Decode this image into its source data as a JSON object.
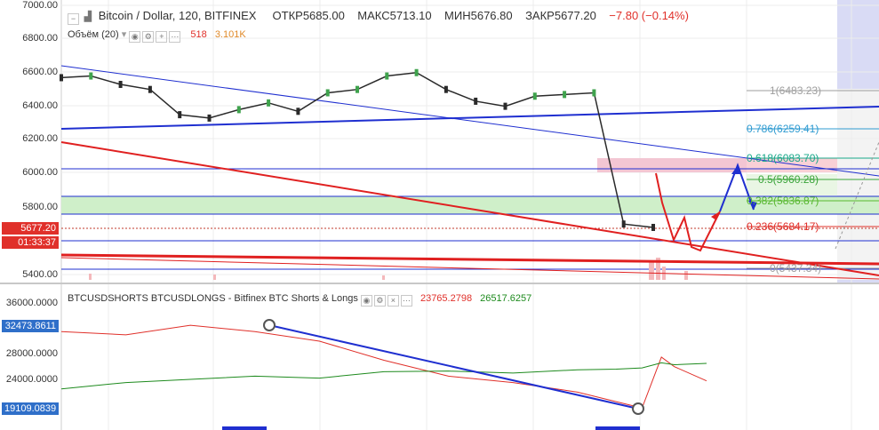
{
  "header": {
    "symbol": "Bitcoin / Dollar, 120, BITFINEX",
    "open_label": "ОТКР",
    "open": "5685.00",
    "high_label": "МАКС",
    "high": "5713.10",
    "low_label": "МИН",
    "low": "5676.80",
    "close_label": "ЗАКР",
    "close": "5677.20",
    "change": "−7.80 (−0.14%)"
  },
  "volume_legend": {
    "label": "Объём (20)",
    "v1": "518",
    "v2": "3.101K"
  },
  "price_axis": {
    "ticks": [
      "7000.00",
      "6800.00",
      "6600.00",
      "6400.00",
      "6200.00",
      "6000.00",
      "5800.00",
      "5400.00"
    ],
    "last_price": "5677.20",
    "countdown": "01:33:37"
  },
  "fib_levels": [
    {
      "label": "1(6483.23)",
      "color": "#9e9e9e"
    },
    {
      "label": "0.786(6259.41)",
      "color": "#2f9bd1"
    },
    {
      "label": "0.618(6083.70)",
      "color": "#1aa88a"
    },
    {
      "label": "0.5(5960.28)",
      "color": "#3aa43a"
    },
    {
      "label": "0.382(5836.87)",
      "color": "#58b830"
    },
    {
      "label": "0.236(5684.17)",
      "color": "#e0302a"
    },
    {
      "label": "0(5437.34)",
      "color": "#9e9e9e"
    }
  ],
  "indicator": {
    "title": "BTCUSDSHORTS BTCUSDLONGS - Bitfinex BTC Shorts & Longs",
    "shorts_value": "23765.2798",
    "longs_value": "26517.6257",
    "shorts_color": "#e0302a",
    "longs_color": "#1d8a1d",
    "axis_ticks": [
      "36000.0000",
      "28000.0000",
      "24000.0000"
    ],
    "marker_high": "32473.8611",
    "marker_low": "19109.0839"
  },
  "chart_data": [
    {
      "type": "line",
      "title": "Bitcoin / Dollar, 120, BITFINEX",
      "ylim": [
        5400,
        7000
      ],
      "series": [
        {
          "name": "Bitcoin / Dollar",
          "x": [
            0,
            5,
            10,
            15,
            20,
            25,
            30,
            35,
            40,
            45,
            50,
            55,
            60,
            65,
            70,
            75,
            80,
            85,
            90,
            95,
            100
          ],
          "values": [
            6570,
            6580,
            6530,
            6500,
            6350,
            6330,
            6380,
            6420,
            6370,
            6480,
            6500,
            6580,
            6600,
            6500,
            6430,
            6400,
            6460,
            6470,
            6480,
            5700,
            5680
          ]
        }
      ]
    },
    {
      "type": "line",
      "title": "BTCUSDSHORTS BTCUSDLONGS - Bitfinex BTC Shorts & Longs",
      "series": [
        {
          "name": "BTCUSDSHORTS",
          "x": [
            0,
            10,
            20,
            30,
            40,
            50,
            60,
            70,
            80,
            86,
            90,
            93,
            95,
            100
          ],
          "values": [
            31500,
            31000,
            32500,
            31500,
            30000,
            27000,
            24500,
            23500,
            22000,
            20500,
            19500,
            27500,
            26000,
            23765
          ]
        },
        {
          "name": "BTCUSDLONGS",
          "x": [
            0,
            10,
            20,
            30,
            40,
            50,
            60,
            70,
            80,
            86,
            90,
            93,
            95,
            100
          ],
          "values": [
            22500,
            23500,
            24000,
            24500,
            24200,
            25200,
            25300,
            25000,
            25500,
            25600,
            25800,
            26600,
            26300,
            26517
          ]
        }
      ]
    }
  ]
}
